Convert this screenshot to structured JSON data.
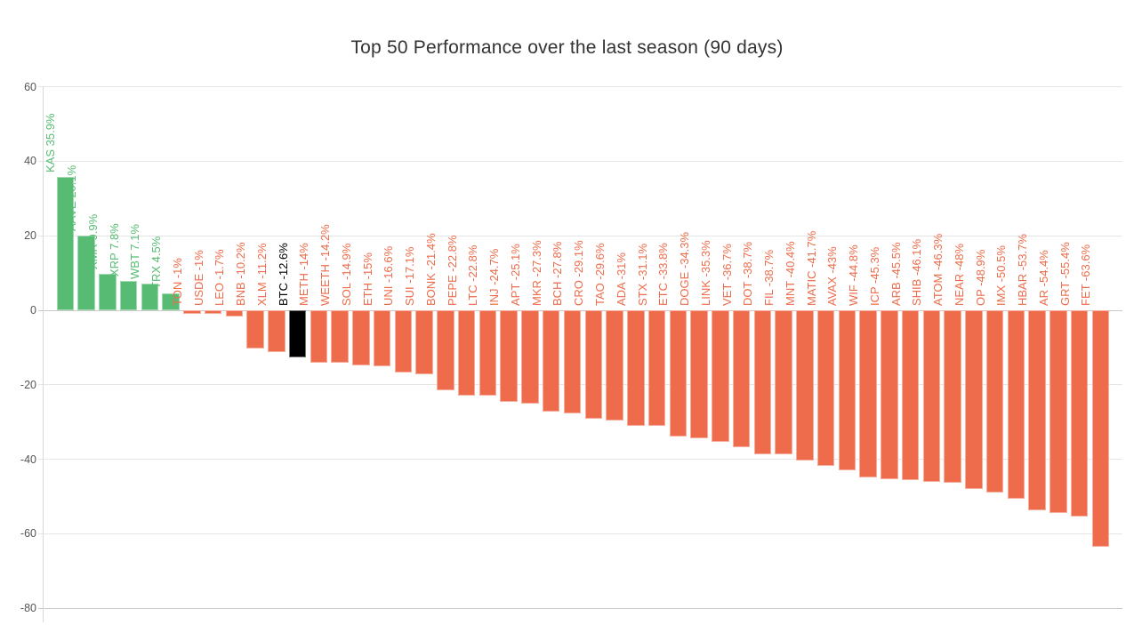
{
  "header": {
    "title": "Top 50 Performance over the last season (90 days)"
  },
  "chart_data": {
    "type": "bar",
    "title": "Top 50 Performance over the last season (90 days)",
    "xlabel": "",
    "ylabel": "",
    "ylim": [
      -80,
      60
    ],
    "yticks": [
      60,
      40,
      20,
      0,
      -20,
      -40,
      -60,
      -80
    ],
    "grid": true,
    "legend": false,
    "bar_orientation": "vertical",
    "label_style": "rotated-90-at-bar-top",
    "highlight_item": "BTC",
    "palette": {
      "positive": "#57bb73",
      "negative": "#ee6c4b",
      "highlight": "#000000",
      "gridline": "#e6e6e6",
      "zeroline": "#c9c9c9",
      "axisline": "#d9d9d9",
      "tick_label_color": "#555555",
      "title_color": "#333333"
    },
    "items": [
      {
        "name": "KAS",
        "value": 35.9,
        "display": "KAS 35.9%"
      },
      {
        "name": "AAVE",
        "value": 20.1,
        "display": "AAVE 20.1%"
      },
      {
        "name": "XMR",
        "value": 9.9,
        "display": "XMR 9.9%"
      },
      {
        "name": "XRP",
        "value": 7.8,
        "display": "XRP 7.8%"
      },
      {
        "name": "WBT",
        "value": 7.1,
        "display": "WBT 7.1%"
      },
      {
        "name": "TRX",
        "value": 4.5,
        "display": "TRX 4.5%"
      },
      {
        "name": "TON",
        "value": -1,
        "display": "TON -1%"
      },
      {
        "name": "USDE",
        "value": -1,
        "display": "USDE -1%"
      },
      {
        "name": "LEO",
        "value": -1.7,
        "display": "LEO -1.7%"
      },
      {
        "name": "BNB",
        "value": -10.2,
        "display": "BNB -10.2%"
      },
      {
        "name": "XLM",
        "value": -11.2,
        "display": "XLM -11.2%"
      },
      {
        "name": "BTC",
        "value": -12.6,
        "display": "BTC -12.6%"
      },
      {
        "name": "METH",
        "value": -14,
        "display": "METH -14%"
      },
      {
        "name": "WEETH",
        "value": -14.2,
        "display": "WEETH -14.2%"
      },
      {
        "name": "SOL",
        "value": -14.9,
        "display": "SOL -14.9%"
      },
      {
        "name": "ETH",
        "value": -15,
        "display": "ETH -15%"
      },
      {
        "name": "UNI",
        "value": -16.6,
        "display": "UNI -16.6%"
      },
      {
        "name": "SUI",
        "value": -17.1,
        "display": "SUI -17.1%"
      },
      {
        "name": "BONK",
        "value": -21.4,
        "display": "BONK -21.4%"
      },
      {
        "name": "PEPE",
        "value": -22.8,
        "display": "PEPE -22.8%"
      },
      {
        "name": "LTC",
        "value": -22.8,
        "display": "LTC -22.8%"
      },
      {
        "name": "INJ",
        "value": -24.7,
        "display": "INJ -24.7%"
      },
      {
        "name": "APT",
        "value": -25.1,
        "display": "APT -25.1%"
      },
      {
        "name": "MKR",
        "value": -27.3,
        "display": "MKR -27.3%"
      },
      {
        "name": "BCH",
        "value": -27.8,
        "display": "BCH -27.8%"
      },
      {
        "name": "CRO",
        "value": -29.1,
        "display": "CRO -29.1%"
      },
      {
        "name": "TAO",
        "value": -29.6,
        "display": "TAO -29.6%"
      },
      {
        "name": "ADA",
        "value": -31,
        "display": "ADA -31%"
      },
      {
        "name": "STX",
        "value": -31.1,
        "display": "STX -31.1%"
      },
      {
        "name": "ETC",
        "value": -33.8,
        "display": "ETC -33.8%"
      },
      {
        "name": "DOGE",
        "value": -34.3,
        "display": "DOGE -34.3%"
      },
      {
        "name": "LINK",
        "value": -35.3,
        "display": "LINK -35.3%"
      },
      {
        "name": "VET",
        "value": -36.7,
        "display": "VET -36.7%"
      },
      {
        "name": "DOT",
        "value": -38.7,
        "display": "DOT -38.7%"
      },
      {
        "name": "FIL",
        "value": -38.7,
        "display": "FIL -38.7%"
      },
      {
        "name": "MNT",
        "value": -40.4,
        "display": "MNT -40.4%"
      },
      {
        "name": "MATIC",
        "value": -41.7,
        "display": "MATIC -41.7%"
      },
      {
        "name": "AVAX",
        "value": -43,
        "display": "AVAX -43%"
      },
      {
        "name": "WIF",
        "value": -44.8,
        "display": "WIF -44.8%"
      },
      {
        "name": "ICP",
        "value": -45.3,
        "display": "ICP -45.3%"
      },
      {
        "name": "ARB",
        "value": -45.5,
        "display": "ARB -45.5%"
      },
      {
        "name": "SHIB",
        "value": -46.1,
        "display": "SHIB -46.1%"
      },
      {
        "name": "ATOM",
        "value": -46.3,
        "display": "ATOM -46.3%"
      },
      {
        "name": "NEAR",
        "value": -48,
        "display": "NEAR -48%"
      },
      {
        "name": "OP",
        "value": -48.9,
        "display": "OP -48.9%"
      },
      {
        "name": "IMX",
        "value": -50.5,
        "display": "IMX -50.5%"
      },
      {
        "name": "HBAR",
        "value": -53.7,
        "display": "HBAR -53.7%"
      },
      {
        "name": "AR",
        "value": -54.4,
        "display": "AR -54.4%"
      },
      {
        "name": "GRT",
        "value": -55.4,
        "display": "GRT -55.4%"
      },
      {
        "name": "FET",
        "value": -63.6,
        "display": "FET -63.6%"
      }
    ]
  }
}
